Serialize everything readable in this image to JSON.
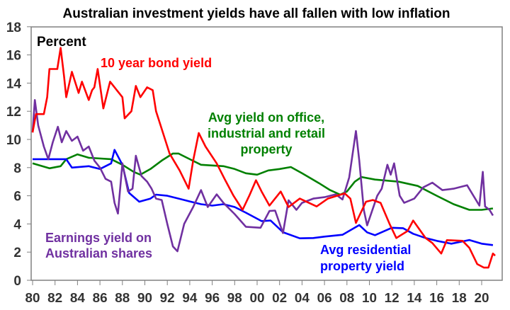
{
  "chart_data": {
    "type": "line",
    "title": "Australian investment yields have all fallen with low inflation",
    "ylabel": "Percent",
    "xlabel": "",
    "ylim": [
      0,
      18
    ],
    "yticks": [
      "0",
      "2",
      "4",
      "6",
      "8",
      "10",
      "12",
      "14",
      "16",
      "18"
    ],
    "xlim": [
      1980,
      2021.9
    ],
    "xticks": [
      "80",
      "82",
      "84",
      "86",
      "88",
      "90",
      "92",
      "94",
      "96",
      "98",
      "00",
      "02",
      "04",
      "06",
      "08",
      "10",
      "12",
      "14",
      "16",
      "18",
      "20"
    ],
    "grid": false,
    "series": [
      {
        "name": "10 year bond yield",
        "label_lines": [
          "10 year bond yield"
        ],
        "color": "#ff0000",
        "points": [
          [
            1980,
            10.5
          ],
          [
            1980.3,
            11.8
          ],
          [
            1981,
            11.8
          ],
          [
            1981.3,
            13.0
          ],
          [
            1981.5,
            15.0
          ],
          [
            1982.2,
            15.0
          ],
          [
            1982.5,
            16.5
          ],
          [
            1982.8,
            14.5
          ],
          [
            1983,
            13.0
          ],
          [
            1983.5,
            14.8
          ],
          [
            1984.1,
            13.3
          ],
          [
            1984.4,
            14.1
          ],
          [
            1985,
            12.8
          ],
          [
            1985.3,
            13.5
          ],
          [
            1985.5,
            13.7
          ],
          [
            1985.8,
            15.0
          ],
          [
            1986.3,
            12.2
          ],
          [
            1986.9,
            14.1
          ],
          [
            1987.5,
            13.5
          ],
          [
            1988,
            13.0
          ],
          [
            1988.2,
            11.5
          ],
          [
            1988.8,
            12.0
          ],
          [
            1989.2,
            13.8
          ],
          [
            1989.6,
            13.0
          ],
          [
            1990.2,
            13.7
          ],
          [
            1990.7,
            13.5
          ],
          [
            1991,
            12.0
          ],
          [
            1991.4,
            11.0
          ],
          [
            1992.2,
            9.0
          ],
          [
            1993.1,
            7.8
          ],
          [
            1993.9,
            6.5
          ],
          [
            1994.3,
            8.5
          ],
          [
            1994.8,
            10.45
          ],
          [
            1995.4,
            9.5
          ],
          [
            1996.4,
            8.3
          ],
          [
            1997.1,
            7.2
          ],
          [
            1997.9,
            6.0
          ],
          [
            1998.7,
            5.0
          ],
          [
            1999.3,
            6.0
          ],
          [
            1999.9,
            7.1
          ],
          [
            2000.4,
            6.3
          ],
          [
            2001.1,
            5.3
          ],
          [
            2002.1,
            6.3
          ],
          [
            2002.8,
            5.2
          ],
          [
            2003.8,
            5.8
          ],
          [
            2005.3,
            5.24
          ],
          [
            2006.3,
            5.8
          ],
          [
            2007.8,
            6.17
          ],
          [
            2008.3,
            5.8
          ],
          [
            2008.8,
            4.07
          ],
          [
            2009.7,
            5.58
          ],
          [
            2010.3,
            5.7
          ],
          [
            2011,
            5.5
          ],
          [
            2011.8,
            4.0
          ],
          [
            2012.4,
            3.0
          ],
          [
            2013.4,
            3.5
          ],
          [
            2013.9,
            4.24
          ],
          [
            2015,
            3.0
          ],
          [
            2015.6,
            2.65
          ],
          [
            2016.4,
            1.9
          ],
          [
            2016.9,
            2.85
          ],
          [
            2018.3,
            2.8
          ],
          [
            2018.9,
            2.3
          ],
          [
            2019.6,
            1.15
          ],
          [
            2020.2,
            0.9
          ],
          [
            2020.6,
            0.9
          ],
          [
            2021,
            1.9
          ],
          [
            2021.2,
            1.75
          ]
        ]
      },
      {
        "name": "Avg yield on office, industrial and retail property",
        "label_lines": [
          "Avg yield on office,",
          "industrial and retail",
          "property"
        ],
        "color": "#008000",
        "points": [
          [
            1980,
            8.3
          ],
          [
            1981.5,
            7.95
          ],
          [
            1982.5,
            8.1
          ],
          [
            1983,
            8.6
          ],
          [
            1984,
            8.94
          ],
          [
            1985,
            8.7
          ],
          [
            1987,
            8.6
          ],
          [
            1988,
            8.2
          ],
          [
            1989,
            7.7
          ],
          [
            1989.6,
            7.5
          ],
          [
            1990.5,
            7.9
          ],
          [
            1991.5,
            8.5
          ],
          [
            1992.5,
            9.0
          ],
          [
            1993,
            9.0
          ],
          [
            1994,
            8.6
          ],
          [
            1995,
            8.2
          ],
          [
            1997,
            8.1
          ],
          [
            1998,
            7.9
          ],
          [
            1999,
            7.6
          ],
          [
            2000,
            7.5
          ],
          [
            2001,
            7.8
          ],
          [
            2002,
            7.9
          ],
          [
            2003,
            8.04
          ],
          [
            2004,
            7.6
          ],
          [
            2005.5,
            6.9
          ],
          [
            2006.5,
            6.4
          ],
          [
            2007.4,
            6.08
          ],
          [
            2008,
            6.3
          ],
          [
            2008.7,
            7.0
          ],
          [
            2009.3,
            7.33
          ],
          [
            2010.5,
            7.15
          ],
          [
            2012.6,
            7.0
          ],
          [
            2014.3,
            6.7
          ],
          [
            2016,
            6.0
          ],
          [
            2017.5,
            5.4
          ],
          [
            2018.9,
            5.0
          ],
          [
            2020,
            5.0
          ],
          [
            2021,
            5.1
          ]
        ]
      },
      {
        "name": "Avg residential property yield",
        "label_lines": [
          "Avg residential",
          "property yield"
        ],
        "color": "#0000ff",
        "points": [
          [
            1980,
            8.6
          ],
          [
            1983,
            8.6
          ],
          [
            1983.5,
            8.0
          ],
          [
            1985,
            8.1
          ],
          [
            1986,
            7.9
          ],
          [
            1987,
            8.3
          ],
          [
            1987.3,
            9.26
          ],
          [
            1988,
            8.2
          ],
          [
            1988.6,
            6.2
          ],
          [
            1989.5,
            5.58
          ],
          [
            1990.5,
            5.8
          ],
          [
            1991,
            6.08
          ],
          [
            1992,
            6.0
          ],
          [
            1994,
            5.6
          ],
          [
            1995,
            5.4
          ],
          [
            1996,
            5.3
          ],
          [
            1997,
            5.4
          ],
          [
            1998,
            5.2
          ],
          [
            1999,
            4.8
          ],
          [
            2000.4,
            4.2
          ],
          [
            2001.2,
            4.24
          ],
          [
            2002.3,
            3.41
          ],
          [
            2003.8,
            2.98
          ],
          [
            2005,
            3.0
          ],
          [
            2006,
            3.1
          ],
          [
            2007.6,
            3.23
          ],
          [
            2009.1,
            3.92
          ],
          [
            2009.8,
            3.4
          ],
          [
            2010.5,
            3.2
          ],
          [
            2012,
            3.73
          ],
          [
            2013,
            3.7
          ],
          [
            2013.9,
            3.3
          ],
          [
            2015,
            3.0
          ],
          [
            2016,
            2.8
          ],
          [
            2017.3,
            2.6
          ],
          [
            2018.9,
            2.86
          ],
          [
            2020,
            2.6
          ],
          [
            2021,
            2.5
          ]
        ]
      },
      {
        "name": "Earnings yield on Australian shares",
        "label_lines": [
          "Earnings yield on",
          "Australian shares"
        ],
        "color": "#7030a0",
        "points": [
          [
            1980,
            10.5
          ],
          [
            1980.2,
            12.8
          ],
          [
            1980.5,
            11.0
          ],
          [
            1981,
            9.5
          ],
          [
            1981.4,
            8.6
          ],
          [
            1981.8,
            9.8
          ],
          [
            1982.25,
            10.9
          ],
          [
            1982.6,
            9.8
          ],
          [
            1983,
            10.6
          ],
          [
            1983.5,
            9.9
          ],
          [
            1984,
            10.2
          ],
          [
            1984.5,
            9.2
          ],
          [
            1985,
            9.5
          ],
          [
            1985.5,
            8.5
          ],
          [
            1986,
            8.0
          ],
          [
            1986.5,
            7.2
          ],
          [
            1987,
            7.0
          ],
          [
            1987.3,
            5.5
          ],
          [
            1987.6,
            4.74
          ],
          [
            1988,
            8.3
          ],
          [
            1988.5,
            6.3
          ],
          [
            1988.9,
            6.5
          ],
          [
            1989.2,
            8.84
          ],
          [
            1989.7,
            7.4
          ],
          [
            1990.2,
            7.0
          ],
          [
            1990.6,
            6.5
          ],
          [
            1991,
            5.8
          ],
          [
            1991.5,
            5.7
          ],
          [
            1992,
            4.0
          ],
          [
            1992.5,
            2.4
          ],
          [
            1992.9,
            2.06
          ],
          [
            1993.5,
            4.0
          ],
          [
            1994.3,
            5.2
          ],
          [
            1995,
            6.4
          ],
          [
            1995.6,
            5.2
          ],
          [
            1996.4,
            6.1
          ],
          [
            1997,
            5.5
          ],
          [
            1998,
            4.7
          ],
          [
            1999,
            3.8
          ],
          [
            2000.3,
            3.73
          ],
          [
            2001.1,
            4.92
          ],
          [
            2001.6,
            4.95
          ],
          [
            2002.3,
            3.35
          ],
          [
            2002.8,
            5.68
          ],
          [
            2003.5,
            5.0
          ],
          [
            2004,
            5.5
          ],
          [
            2005,
            5.8
          ],
          [
            2006,
            5.9
          ],
          [
            2007,
            6.1
          ],
          [
            2007.6,
            5.74
          ],
          [
            2008.2,
            7.3
          ],
          [
            2008.8,
            10.6
          ],
          [
            2009.1,
            8.5
          ],
          [
            2009.5,
            5.0
          ],
          [
            2009.8,
            3.9
          ],
          [
            2010.7,
            6.0
          ],
          [
            2011.1,
            6.5
          ],
          [
            2011.6,
            8.2
          ],
          [
            2011.9,
            7.5
          ],
          [
            2012.2,
            8.3
          ],
          [
            2012.7,
            6.0
          ],
          [
            2013.1,
            5.5
          ],
          [
            2014,
            5.8
          ],
          [
            2014.8,
            6.6
          ],
          [
            2015.6,
            6.93
          ],
          [
            2016.5,
            6.4
          ],
          [
            2017.5,
            6.5
          ],
          [
            2018.7,
            6.75
          ],
          [
            2019.8,
            5.3
          ],
          [
            2020.1,
            7.7
          ],
          [
            2020.3,
            5.24
          ],
          [
            2020.7,
            5.0
          ],
          [
            2021,
            4.6
          ]
        ]
      }
    ]
  }
}
